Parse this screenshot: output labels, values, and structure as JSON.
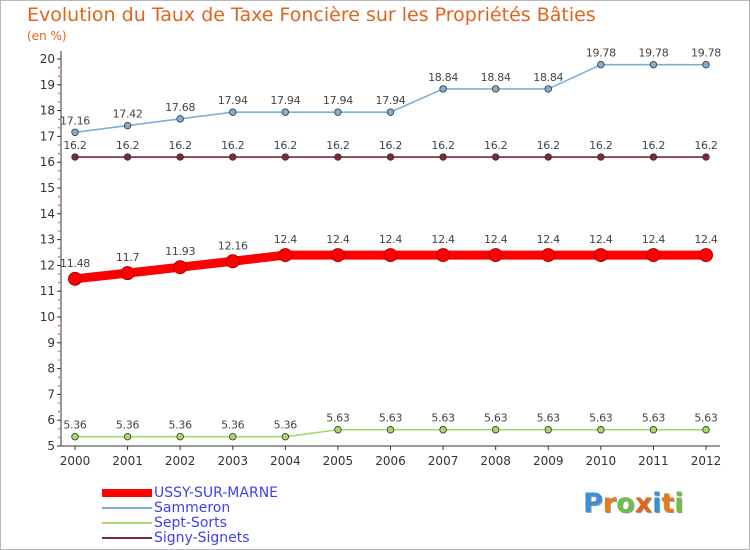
{
  "title": "Evolution du Taux de Taxe Foncière sur les Propriétés Bâties",
  "unit_label": "(en %)",
  "logo": {
    "text": "Proxiti",
    "letters": [
      "P",
      "r",
      "o",
      "x",
      "i",
      "t",
      "i"
    ],
    "colors": [
      "#3b8fd6",
      "#e87a1d",
      "#6cc04a",
      "#e0641b",
      "#3b8fd6",
      "#e87a1d",
      "#6cc04a"
    ]
  },
  "chart_data": {
    "type": "line",
    "title": "Evolution du Taux de Taxe Foncière sur les Propriétés Bâties",
    "ylabel": "(en %)",
    "xlabel": "",
    "x": [
      "2000",
      "2001",
      "2002",
      "2003",
      "2004",
      "2005",
      "2006",
      "2007",
      "2008",
      "2009",
      "2010",
      "2011",
      "2012"
    ],
    "ylim": [
      5,
      20
    ],
    "yticks": [
      5,
      6,
      7,
      8,
      9,
      10,
      11,
      12,
      13,
      14,
      15,
      16,
      17,
      18,
      19,
      20
    ],
    "grid": false,
    "legend_position": "bottom-left",
    "series": [
      {
        "name": "USSY-SUR-MARNE",
        "color": "#ff0000",
        "values": [
          11.48,
          11.7,
          11.93,
          12.16,
          12.4,
          12.4,
          12.4,
          12.4,
          12.4,
          12.4,
          12.4,
          12.4,
          12.4
        ],
        "labels": [
          "11.48",
          "11.7",
          "11.93",
          "12.16",
          "12.4",
          "12.4",
          "12.4",
          "12.4",
          "12.4",
          "12.4",
          "12.4",
          "12.4",
          "12.4"
        ],
        "emphasis": true
      },
      {
        "name": "Sammeron",
        "color": "#7eaed8",
        "values": [
          17.16,
          17.42,
          17.68,
          17.94,
          17.94,
          17.94,
          17.94,
          18.84,
          18.84,
          18.84,
          19.78,
          19.78,
          19.78
        ],
        "labels": [
          "17.16",
          "17.42",
          "17.68",
          "17.94",
          "17.94",
          "17.94",
          "17.94",
          "18.84",
          "18.84",
          "18.84",
          "19.78",
          "19.78",
          "19.78"
        ]
      },
      {
        "name": "Sept-Sorts",
        "color": "#a6d96a",
        "values": [
          5.36,
          5.36,
          5.36,
          5.36,
          5.36,
          5.63,
          5.63,
          5.63,
          5.63,
          5.63,
          5.63,
          5.63,
          5.63
        ],
        "labels": [
          "5.36",
          "5.36",
          "5.36",
          "5.36",
          "5.36",
          "5.63",
          "5.63",
          "5.63",
          "5.63",
          "5.63",
          "5.63",
          "5.63",
          "5.63"
        ]
      },
      {
        "name": "Signy-Signets",
        "color": "#7a2a35",
        "values": [
          16.2,
          16.2,
          16.2,
          16.2,
          16.2,
          16.2,
          16.2,
          16.2,
          16.2,
          16.2,
          16.2,
          16.2,
          16.2
        ],
        "labels": [
          "16.2",
          "16.2",
          "16.2",
          "16.2",
          "16.2",
          "16.2",
          "16.2",
          "16.2",
          "16.2",
          "16.2",
          "16.2",
          "16.2",
          "16.2"
        ]
      }
    ],
    "legend_order": [
      "USSY-SUR-MARNE",
      "Sammeron",
      "Sept-Sorts",
      "Signy-Signets"
    ]
  }
}
